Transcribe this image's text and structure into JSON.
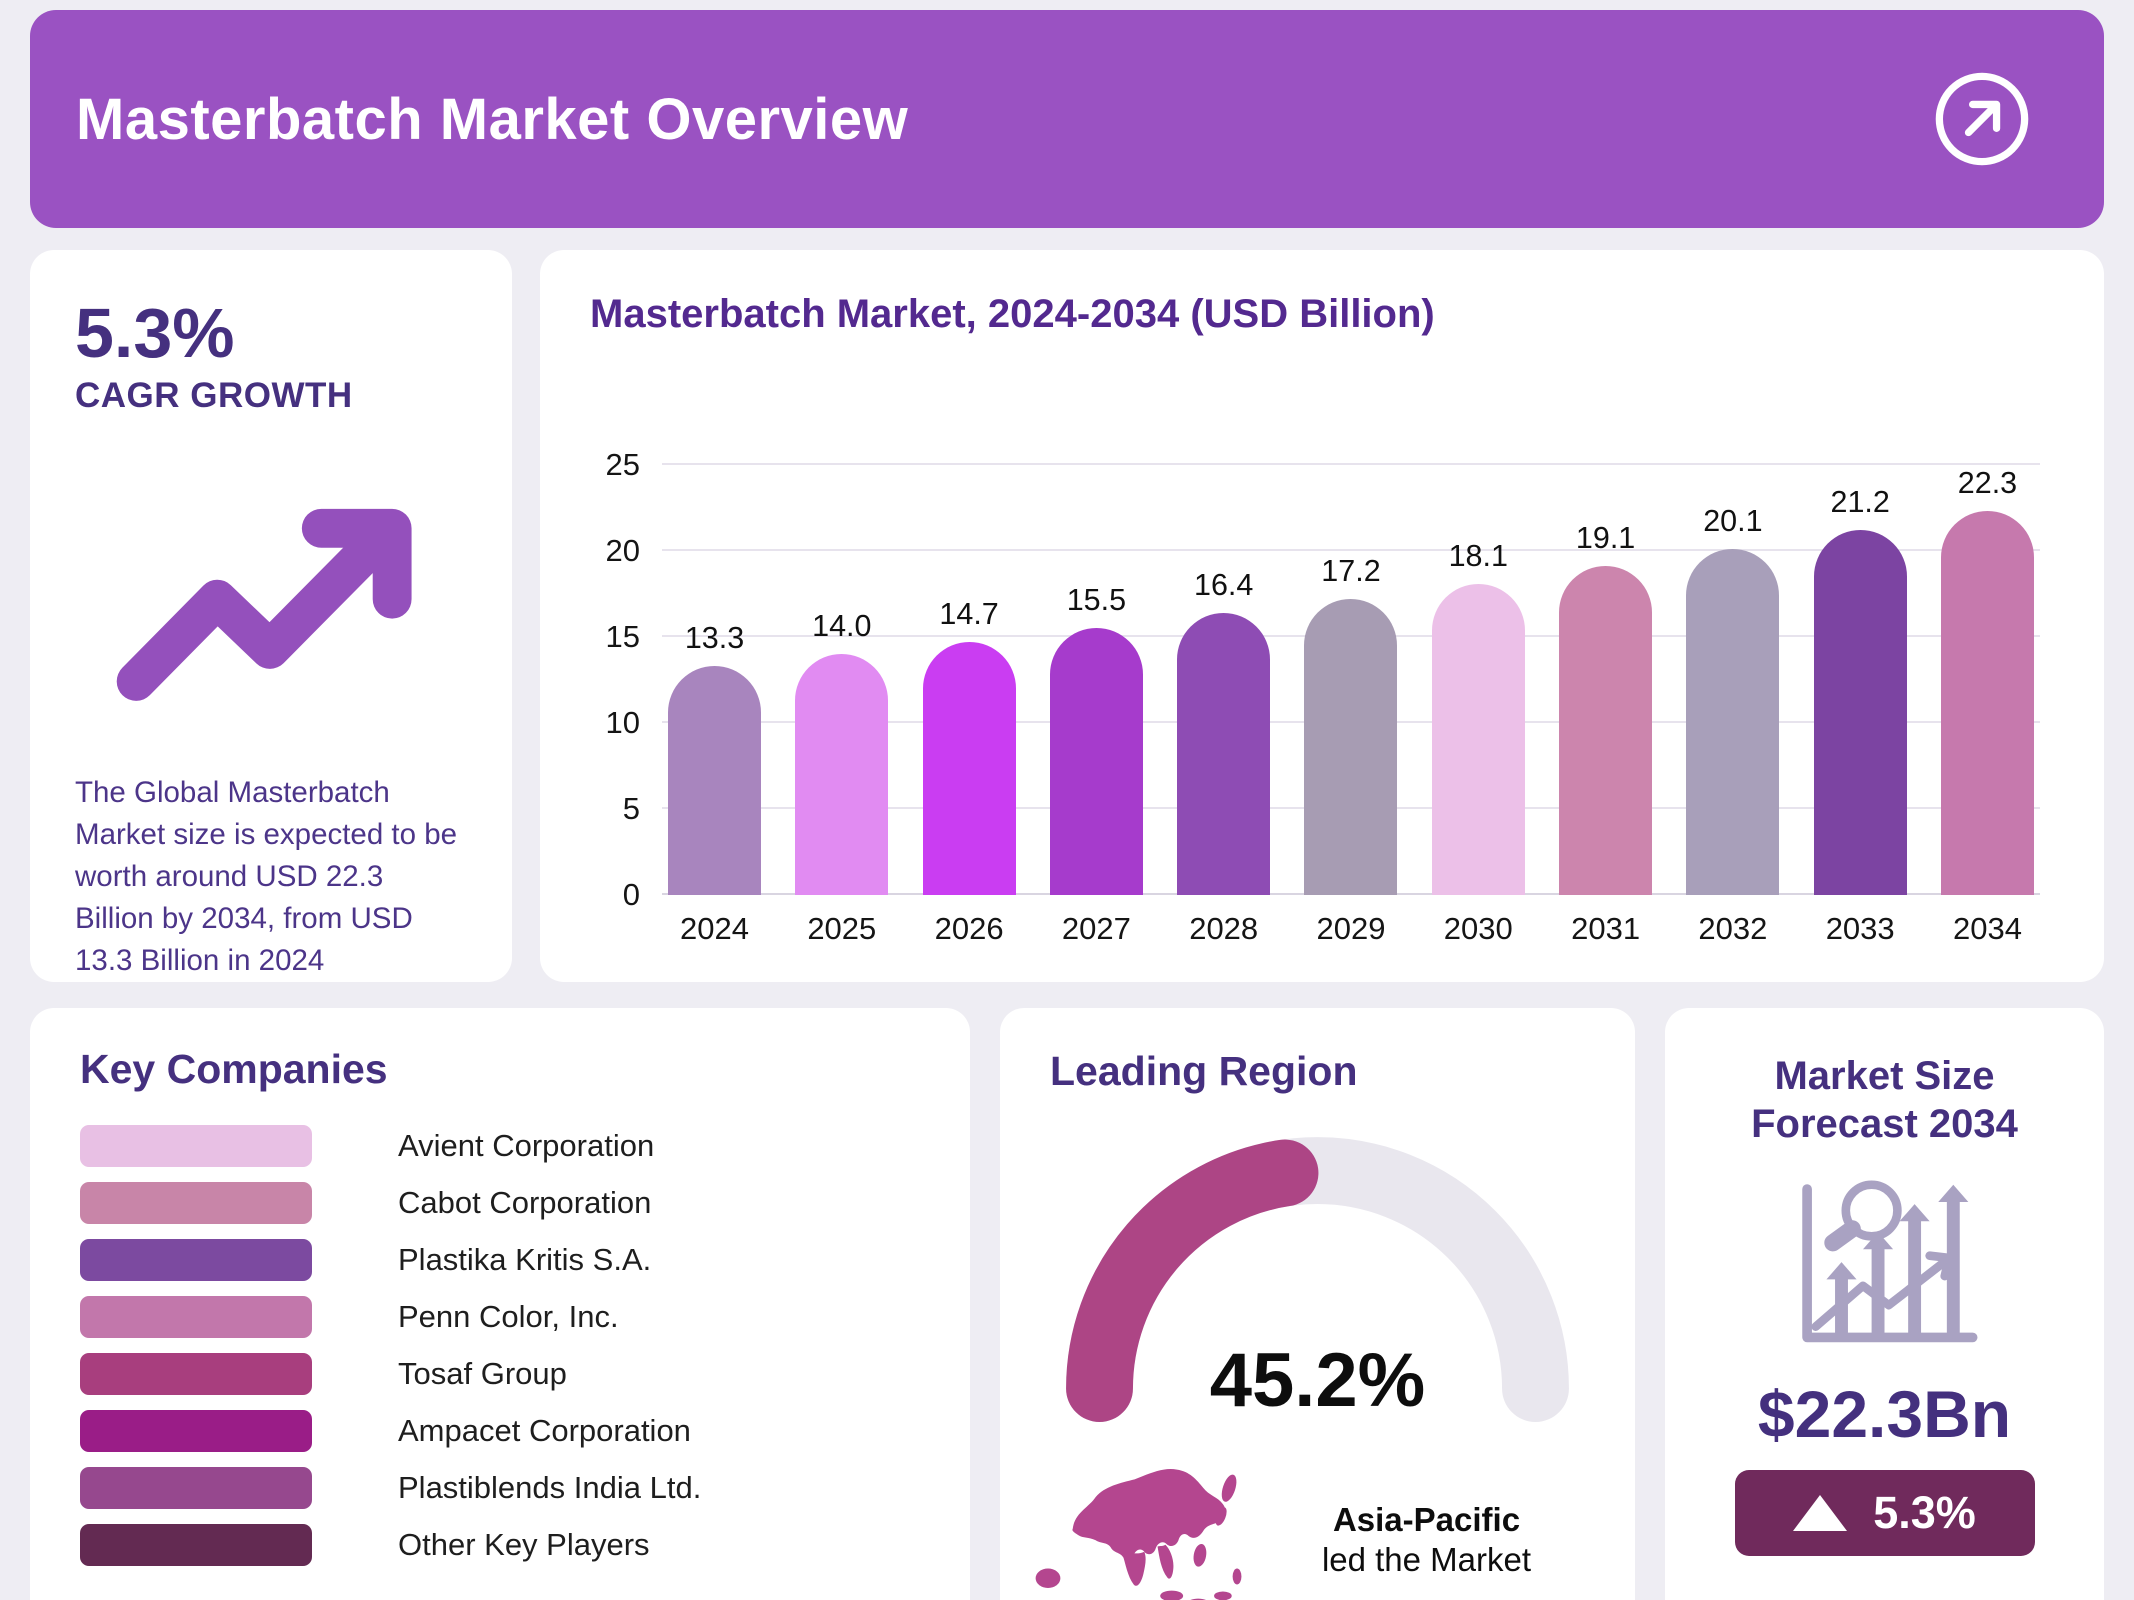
{
  "colors": {
    "page_bg": "#EEEDF3",
    "header_bg": "#9A52C2",
    "heading": "#45307F",
    "chart_title": "#53298F",
    "body_text": "#4C3589",
    "icon_purple": "#9450BC",
    "gauge": "#AD4585",
    "gauge_track": "#E9E7EE",
    "map": "#B4468F",
    "forecast_icon": "#A9A2C2",
    "badge_bg": "#702A5C",
    "forecast_value": "#44307E"
  },
  "header": {
    "title": "Masterbatch Market Overview"
  },
  "cagr_card": {
    "value": "5.3%",
    "label": "CAGR GROWTH",
    "description": "The Global Masterbatch Market size is expected to be worth around USD 22.3 Billion by 2034, from USD 13.3 Billion in 2024"
  },
  "chart_data": {
    "type": "bar",
    "title": "Masterbatch Market, 2024-2034 (USD Billion)",
    "categories": [
      "2024",
      "2025",
      "2026",
      "2027",
      "2028",
      "2029",
      "2030",
      "2031",
      "2032",
      "2033",
      "2034"
    ],
    "values": [
      13.3,
      14.0,
      14.7,
      15.5,
      16.4,
      17.2,
      18.1,
      19.1,
      20.1,
      21.2,
      22.3
    ],
    "value_labels": [
      "13.3",
      "14.0",
      "14.7",
      "15.5",
      "16.4",
      "17.2",
      "18.1",
      "19.1",
      "20.1",
      "21.2",
      "22.3"
    ],
    "bar_colors": [
      "#A885BE",
      "#E18BF2",
      "#CA3DF2",
      "#A63BCC",
      "#8E4CB4",
      "#A79CB3",
      "#ECC0E8",
      "#CC85AD",
      "#A89FBA",
      "#7C44A2",
      "#C679AD"
    ],
    "xlabel": "",
    "ylabel": "",
    "ylim": [
      0,
      25
    ],
    "yticks": [
      0,
      5,
      10,
      15,
      20,
      25
    ],
    "grid": true,
    "legend": false
  },
  "key_companies": {
    "title": "Key Companies",
    "items": [
      {
        "name": "Avient Corporation",
        "color": "#E8C0E4"
      },
      {
        "name": "Cabot Corporation",
        "color": "#C885A8"
      },
      {
        "name": "Plastika Kritis S.A.",
        "color": "#7C4AA0"
      },
      {
        "name": "Penn Color, Inc.",
        "color": "#C277AB"
      },
      {
        "name": "Tosaf Group",
        "color": "#A83E7E"
      },
      {
        "name": "Ampacet Corporation",
        "color": "#9A1D87"
      },
      {
        "name": "Plastiblends India Ltd.",
        "color": "#96488E"
      },
      {
        "name": "Other Key Players",
        "color": "#632A52"
      }
    ]
  },
  "leading_region": {
    "title": "Leading Region",
    "share_label": "45.2%",
    "share_pct": 45.2,
    "region": "Asia-Pacific",
    "caption": "led the Market"
  },
  "forecast_card": {
    "title": "Market Size Forecast 2034",
    "value": "$22.3Bn",
    "growth_label": "5.3%"
  }
}
